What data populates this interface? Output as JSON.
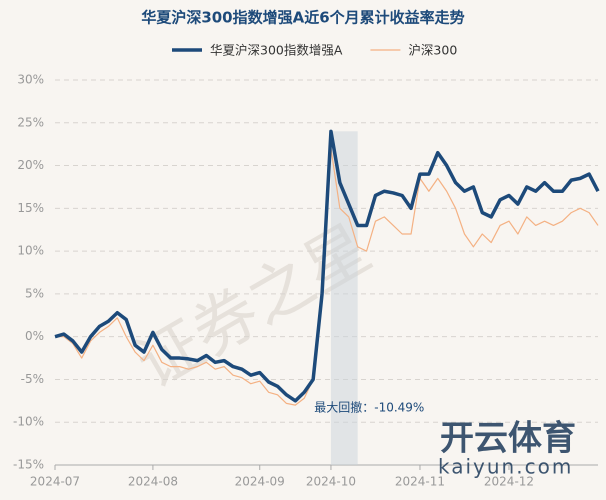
{
  "chart_data": {
    "type": "line",
    "title": "华夏沪深300指数增强A近6个月累计收益率走势",
    "annotation": "最大回撤：-10.49%",
    "categories": [
      "2024-07",
      null,
      null,
      null,
      null,
      null,
      null,
      null,
      null,
      null,
      null,
      "2024-08",
      null,
      null,
      null,
      null,
      null,
      null,
      null,
      null,
      null,
      null,
      null,
      "2024-09",
      null,
      null,
      null,
      null,
      null,
      null,
      null,
      "2024-10",
      null,
      null,
      null,
      null,
      null,
      null,
      null,
      null,
      null,
      "2024-11",
      null,
      null,
      null,
      null,
      null,
      null,
      null,
      null,
      null,
      "2024-12",
      null,
      null,
      null,
      null,
      null,
      null,
      null,
      null,
      null,
      null
    ],
    "series": [
      {
        "name": "华夏沪深300指数增强A",
        "color": "#1d4a7a",
        "width": 3.5,
        "values": [
          0,
          0.3,
          -0.5,
          -1.8,
          0,
          1.2,
          1.8,
          2.8,
          2,
          -1,
          -1.8,
          0.5,
          -1.5,
          -2.5,
          -2.5,
          -2.6,
          -2.8,
          -2.2,
          -3,
          -2.8,
          -3.5,
          -3.8,
          -4.5,
          -4.2,
          -5.3,
          -5.8,
          -6.8,
          -7.5,
          -6.5,
          -5,
          5,
          24,
          18,
          15.5,
          13,
          13,
          16.5,
          17,
          16.8,
          16.5,
          15,
          19,
          19,
          21.5,
          20,
          18,
          17,
          17.5,
          14.5,
          14,
          16,
          16.5,
          15.5,
          17.5,
          17,
          18,
          17,
          17,
          18.3,
          18.5,
          19,
          17
        ]
      },
      {
        "name": "沪深300",
        "color": "#f4b183",
        "width": 1.2,
        "values": [
          0,
          0,
          -0.8,
          -2.5,
          -0.5,
          0.5,
          1.2,
          2.2,
          0,
          -1.8,
          -2.8,
          -1,
          -3,
          -3.5,
          -3.5,
          -3.8,
          -3.5,
          -3,
          -3.8,
          -3.5,
          -4.5,
          -4.8,
          -5.5,
          -5.2,
          -6.5,
          -6.8,
          -7.8,
          -8,
          -7.2,
          -5,
          5,
          22,
          15,
          14,
          10.5,
          10,
          13.5,
          14,
          13,
          12,
          12,
          18.5,
          17,
          18.5,
          17,
          15,
          12,
          10.5,
          12,
          11,
          13,
          13.5,
          12,
          14,
          13,
          13.5,
          13,
          13.5,
          14.5,
          15,
          14.5,
          13
        ]
      }
    ],
    "ylim": [
      -15,
      30
    ],
    "yticks": [
      {
        "value": -15,
        "label": "-15%"
      },
      {
        "value": -10,
        "label": "-10%"
      },
      {
        "value": -5,
        "label": "-5%"
      },
      {
        "value": 0,
        "label": "0%"
      },
      {
        "value": 5,
        "label": "5%"
      },
      {
        "value": 10,
        "label": "10%"
      },
      {
        "value": 15,
        "label": "15%"
      },
      {
        "value": 20,
        "label": "20%"
      },
      {
        "value": 25,
        "label": "25%"
      },
      {
        "value": 30,
        "label": "30%"
      }
    ],
    "grid": true
  },
  "watermark": {
    "text": "证券之星",
    "logo": "开云体育",
    "url": "kaiyun.com"
  }
}
